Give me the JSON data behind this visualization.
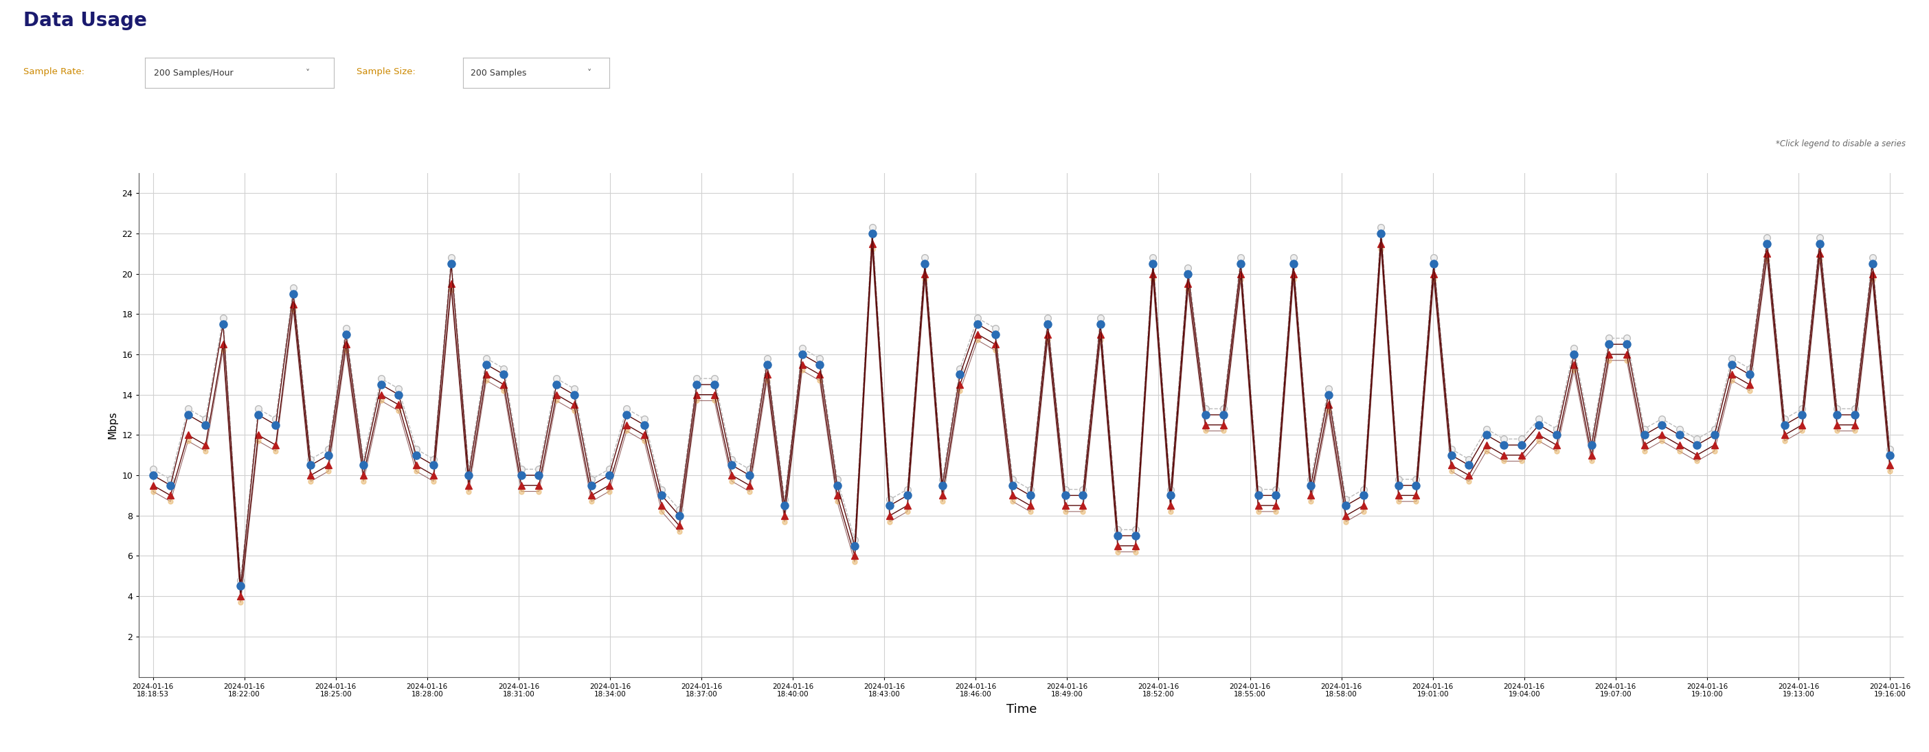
{
  "title": "Data Usage",
  "sample_rate_label": "Sample Rate:",
  "sample_rate_value": "200 Samples/Hour",
  "sample_size_label": "Sample Size:",
  "sample_size_value": "200 Samples",
  "ylabel": "Mbps",
  "xlabel": "Time",
  "ylim": [
    0,
    25
  ],
  "yticks": [
    2,
    4,
    6,
    8,
    10,
    12,
    14,
    16,
    18,
    20,
    22,
    24
  ],
  "legend_note": "*Click legend to disable a series",
  "wan_out_color": "#2a6db5",
  "lan_in_color": "#b81c1c",
  "lan_out_color": "#e8b870",
  "wan_in_color": "#bbbbbb",
  "line_color": "#5a0a0a",
  "background_color": "#ffffff",
  "grid_color": "#d0d0d0",
  "num_points": 100,
  "wan_out_values": [
    10.0,
    9.5,
    13.0,
    12.5,
    17.5,
    4.5,
    13.0,
    12.5,
    19.0,
    10.5,
    11.0,
    17.0,
    10.5,
    14.5,
    14.0,
    11.0,
    10.5,
    20.5,
    10.0,
    15.5,
    15.0,
    10.0,
    10.0,
    14.5,
    14.0,
    9.5,
    10.0,
    13.0,
    12.5,
    9.0,
    8.0,
    14.5,
    14.5,
    10.5,
    10.0,
    15.5,
    8.5,
    16.0,
    15.5,
    9.5,
    6.5,
    22.0,
    8.5,
    9.0,
    20.5,
    9.5,
    15.0,
    17.5,
    17.0,
    9.5,
    9.0,
    17.5,
    9.0,
    9.0,
    17.5,
    7.0,
    7.0,
    20.5,
    9.0,
    20.0,
    13.0,
    13.0,
    20.5,
    9.0,
    9.0,
    20.5,
    9.5,
    14.0,
    8.5,
    9.0,
    22.0,
    9.5,
    9.5,
    20.5,
    11.0,
    10.5,
    12.0,
    11.5,
    11.5,
    12.5,
    12.0,
    16.0,
    11.5,
    16.5,
    16.5,
    12.0,
    12.5,
    12.0,
    11.5,
    12.0,
    15.5,
    15.0,
    21.5,
    12.5,
    13.0,
    21.5,
    13.0,
    13.0,
    20.5,
    11.0
  ],
  "lan_in_values": [
    9.5,
    9.0,
    12.0,
    11.5,
    16.5,
    4.0,
    12.0,
    11.5,
    18.5,
    10.0,
    10.5,
    16.5,
    10.0,
    14.0,
    13.5,
    10.5,
    10.0,
    19.5,
    9.5,
    15.0,
    14.5,
    9.5,
    9.5,
    14.0,
    13.5,
    9.0,
    9.5,
    12.5,
    12.0,
    8.5,
    7.5,
    14.0,
    14.0,
    10.0,
    9.5,
    15.0,
    8.0,
    15.5,
    15.0,
    9.0,
    6.0,
    21.5,
    8.0,
    8.5,
    20.0,
    9.0,
    14.5,
    17.0,
    16.5,
    9.0,
    8.5,
    17.0,
    8.5,
    8.5,
    17.0,
    6.5,
    6.5,
    20.0,
    8.5,
    19.5,
    12.5,
    12.5,
    20.0,
    8.5,
    8.5,
    20.0,
    9.0,
    13.5,
    8.0,
    8.5,
    21.5,
    9.0,
    9.0,
    20.0,
    10.5,
    10.0,
    11.5,
    11.0,
    11.0,
    12.0,
    11.5,
    15.5,
    11.0,
    16.0,
    16.0,
    11.5,
    12.0,
    11.5,
    11.0,
    11.5,
    15.0,
    14.5,
    21.0,
    12.0,
    12.5,
    21.0,
    12.5,
    12.5,
    20.0,
    10.5
  ],
  "x_tick_labels": [
    "2024-01-16\n18:18:53",
    "2024-01-16\n18:22:00",
    "2024-01-16\n18:25:00",
    "2024-01-16\n18:28:00",
    "2024-01-16\n18:31:00",
    "2024-01-16\n18:34:00",
    "2024-01-16\n18:37:00",
    "2024-01-16\n18:40:00",
    "2024-01-16\n18:43:00",
    "2024-01-16\n18:46:00",
    "2024-01-16\n18:49:00",
    "2024-01-16\n18:52:00",
    "2024-01-16\n18:55:00",
    "2024-01-16\n18:58:00",
    "2024-01-16\n19:01:00",
    "2024-01-16\n19:04:00",
    "2024-01-16\n19:07:00",
    "2024-01-16\n19:10:00",
    "2024-01-16\n19:13:00",
    "2024-01-16\n19:16:00"
  ]
}
